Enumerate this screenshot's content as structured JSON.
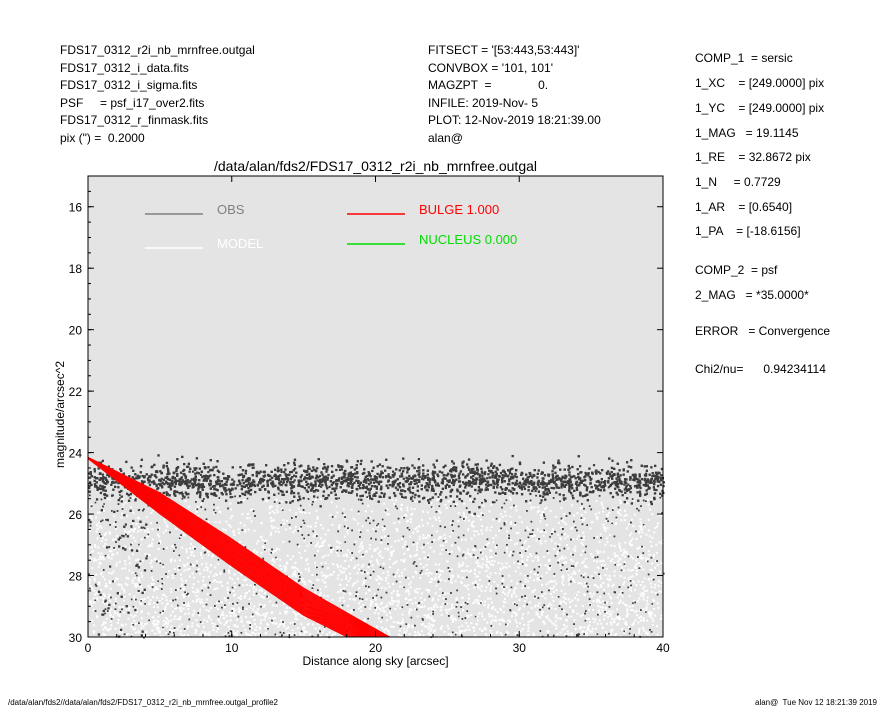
{
  "header_left": [
    "FDS17_0312_r2i_nb_mrnfree.outgal",
    "FDS17_0312_i_data.fits",
    "FDS17_0312_i_sigma.fits",
    "PSF     = psf_i17_over2.fits",
    "FDS17_0312_r_finmask.fits",
    "pix (\") =  0.2000"
  ],
  "header_mid": [
    "FITSECT = '[53:443,53:443]'",
    "CONVBOX = '101, 101'",
    "MAGZPT  =              0.",
    "INFILE: 2019-Nov- 5",
    "PLOT: 12-Nov-2019 18:21:39.00",
    "alan@"
  ],
  "params": [
    "COMP_1  = sersic",
    "1_XC    = [249.0000] pix",
    "1_YC    = [249.0000] pix",
    "1_MAG   = 19.1145",
    "1_RE    = 32.8672 pix",
    "1_N     = 0.7729",
    "1_AR    = [0.6540]",
    "1_PA    = [-18.6156]",
    "COMP_2  = psf",
    "2_MAG   = *35.0000*",
    "ERROR   = Convergence",
    "Chi2/nu=      0.94234114"
  ],
  "footer_left": "/data/alan/fds2//data/alan/fds2/FDS17_0312_r2i_nb_mrnfree.outgal_profile2",
  "footer_right": "alan@  Tue Nov 12 18:21:39 2019",
  "colors": {
    "background": "#e4e4e4",
    "obs": "#3c3c3c",
    "model": "#ffffff",
    "bulge": "#ff0000",
    "nucleus": "#00dd00"
  },
  "chart_data": {
    "type": "scatter",
    "title": "/data/alan/fds2/FDS17_0312_r2i_nb_mrnfree.outgal",
    "xlabel": "Distance along sky [arcsec]",
    "ylabel": "magnitude/arcsec^2",
    "xlim": [
      0,
      40
    ],
    "ylim": [
      30,
      15
    ],
    "y_inverted": true,
    "xticks": [
      "0",
      "10",
      "20",
      "30",
      "40"
    ],
    "yticks": [
      "16",
      "18",
      "20",
      "22",
      "24",
      "26",
      "28",
      "30"
    ],
    "legend": [
      {
        "name": "OBS",
        "color": "#808080"
      },
      {
        "name": "MODEL",
        "color": "#ffffff"
      },
      {
        "name": "BULGE  1.000",
        "color": "#ff0000"
      },
      {
        "name": "NUCLEUS  0.000",
        "color": "#00dd00"
      }
    ],
    "series": [
      {
        "name": "OBS",
        "description_points": "dense band near sky level",
        "sky_level": 24.9,
        "band_halfwidth": 0.4,
        "scatter_floor": 30.0
      },
      {
        "name": "BULGE",
        "x_range": [
          0,
          21
        ],
        "upper_edge": [
          [
            0,
            24.15
          ],
          [
            5,
            25.3
          ],
          [
            10,
            26.8
          ],
          [
            15,
            28.4
          ],
          [
            21,
            30.0
          ]
        ],
        "lower_edge": [
          [
            0,
            24.2
          ],
          [
            5,
            26.0
          ],
          [
            10,
            27.7
          ],
          [
            15,
            29.3
          ],
          [
            18,
            30.0
          ]
        ]
      }
    ]
  }
}
